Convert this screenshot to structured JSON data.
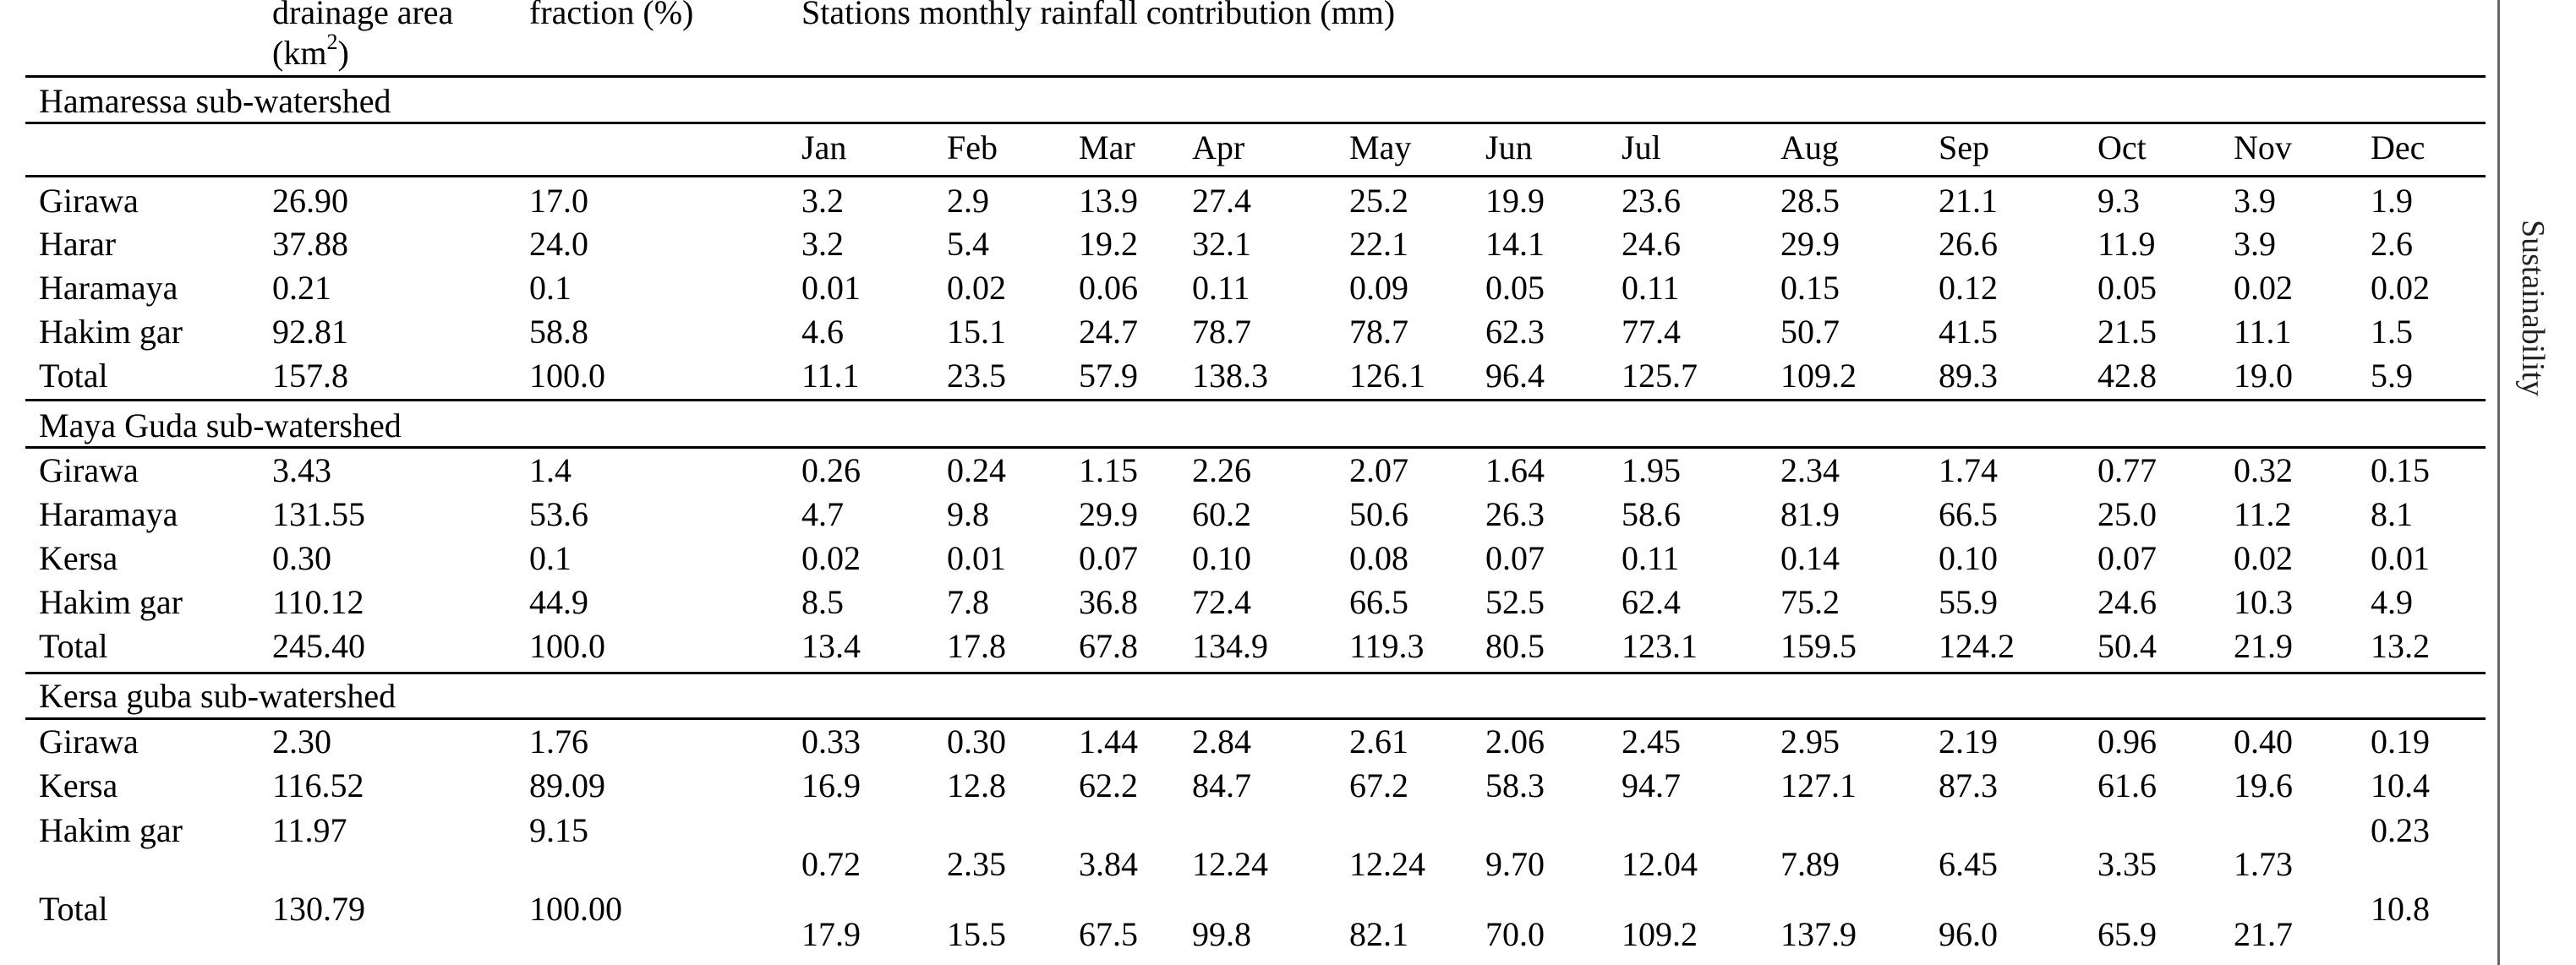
{
  "header": {
    "col_area_line1": "drainage   area",
    "col_area_line2_pre": "(km",
    "col_area_sup": "2",
    "col_area_line2_post": ")",
    "col_fraction": "fraction (%)",
    "col_stations": "Stations monthly rainfall contribution (mm)"
  },
  "months": [
    "Jan",
    "Feb",
    "Mar",
    "Apr",
    "May",
    "Jun",
    "Jul",
    "Aug",
    "Sep",
    "Oct",
    "Nov",
    "Dec"
  ],
  "sections": [
    {
      "title": "Hamaressa sub-watershed",
      "rows": [
        {
          "station": "Girawa",
          "area": "26.90",
          "fraction": "17.0",
          "values": [
            "3.2",
            "2.9",
            "13.9",
            "27.4",
            "25.2",
            "19.9",
            "23.6",
            "28.5",
            "21.1",
            "9.3",
            "3.9",
            "1.9"
          ]
        },
        {
          "station": "Harar",
          "area": "37.88",
          "fraction": "24.0",
          "values": [
            "3.2",
            "5.4",
            "19.2",
            "32.1",
            "22.1",
            "14.1",
            "24.6",
            "29.9",
            "26.6",
            "11.9",
            "3.9",
            "2.6"
          ]
        },
        {
          "station": "Haramaya",
          "area": "0.21",
          "fraction": "0.1",
          "values": [
            "0.01",
            "0.02",
            "0.06",
            "0.11",
            "0.09",
            "0.05",
            "0.11",
            "0.15",
            "0.12",
            "0.05",
            "0.02",
            "0.02"
          ]
        },
        {
          "station": "Hakim gar",
          "area": "92.81",
          "fraction": "58.8",
          "values": [
            "4.6",
            "15.1",
            "24.7",
            "78.7",
            "78.7",
            "62.3",
            "77.4",
            "50.7",
            "41.5",
            "21.5",
            "11.1",
            "1.5"
          ]
        },
        {
          "station": "Total",
          "area": "157.8",
          "fraction": "100.0",
          "values": [
            "11.1",
            "23.5",
            "57.9",
            "138.3",
            "126.1",
            "96.4",
            "125.7",
            "109.2",
            "89.3",
            "42.8",
            "19.0",
            "5.9"
          ]
        }
      ]
    },
    {
      "title": "Maya Guda sub-watershed",
      "rows": [
        {
          "station": "Girawa",
          "area": "3.43",
          "fraction": "1.4",
          "values": [
            "0.26",
            "0.24",
            "1.15",
            "2.26",
            "2.07",
            "1.64",
            "1.95",
            "2.34",
            "1.74",
            "0.77",
            "0.32",
            "0.15"
          ]
        },
        {
          "station": "Haramaya",
          "area": "131.55",
          "fraction": "53.6",
          "values": [
            "4.7",
            "9.8",
            "29.9",
            "60.2",
            "50.6",
            "26.3",
            "58.6",
            "81.9",
            "66.5",
            "25.0",
            "11.2",
            "8.1"
          ]
        },
        {
          "station": "Kersa",
          "area": "0.30",
          "fraction": "0.1",
          "values": [
            "0.02",
            "0.01",
            "0.07",
            "0.10",
            "0.08",
            "0.07",
            "0.11",
            "0.14",
            "0.10",
            "0.07",
            "0.02",
            "0.01"
          ]
        },
        {
          "station": "Hakim gar",
          "area": "110.12",
          "fraction": "44.9",
          "values": [
            "8.5",
            "7.8",
            "36.8",
            "72.4",
            "66.5",
            "52.5",
            "62.4",
            "75.2",
            "55.9",
            "24.6",
            "10.3",
            "4.9"
          ]
        },
        {
          "station": "Total",
          "area": "245.40",
          "fraction": "100.0",
          "values": [
            "13.4",
            "17.8",
            "67.8",
            "134.9",
            "119.3",
            "80.5",
            "123.1",
            "159.5",
            "124.2",
            "50.4",
            "21.9",
            "13.2"
          ]
        }
      ]
    },
    {
      "title": "Kersa guba sub-watershed",
      "rows": [
        {
          "station": "Girawa",
          "area": "2.30",
          "fraction": "1.76",
          "values": [
            "0.33",
            "0.30",
            "1.44",
            "2.84",
            "2.61",
            "2.06",
            "2.45",
            "2.95",
            "2.19",
            "0.96",
            "0.40",
            "0.19"
          ]
        },
        {
          "station": "Kersa",
          "area": "116.52",
          "fraction": "89.09",
          "values": [
            "16.9",
            "12.8",
            "62.2",
            "84.7",
            "67.2",
            "58.3",
            "94.7",
            "127.1",
            "87.3",
            "61.6",
            "19.6",
            "10.4"
          ]
        },
        {
          "station": "Hakim gar",
          "area": "11.97",
          "fraction": "9.15",
          "values": [
            "0.72",
            "2.35",
            "3.84",
            "12.24",
            "12.24",
            "9.70",
            "12.04",
            "7.89",
            "6.45",
            "3.35",
            "1.73",
            "0.23"
          ]
        },
        {
          "station": "Total",
          "area": "130.79",
          "fraction": "100.00",
          "values": [
            "17.9",
            "15.5",
            "67.5",
            "99.8",
            "82.1",
            "70.0",
            "109.2",
            "137.9",
            "96.0",
            "65.9",
            "21.7",
            "10.8"
          ]
        }
      ]
    }
  ],
  "side_text": "Sustainability"
}
